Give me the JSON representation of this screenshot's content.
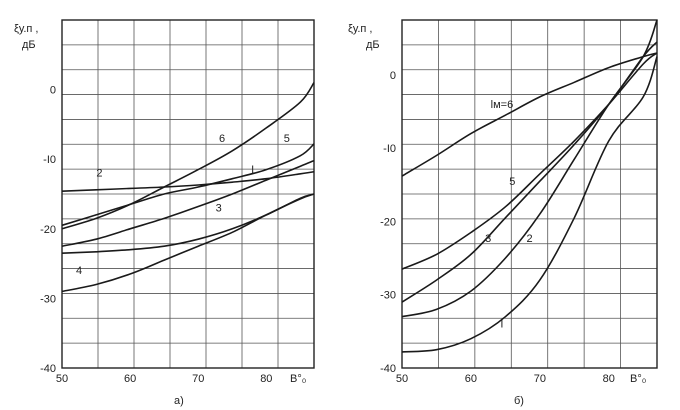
{
  "chart_data": [
    {
      "type": "line",
      "panel_label": "а)",
      "ylabel_main": "ξу.п ,",
      "ylabel_unit": "дБ",
      "xlabel": "B°₀",
      "xlim": [
        50,
        87
      ],
      "ylim": [
        -40,
        10
      ],
      "x_ticks": [
        "50",
        "60",
        "70",
        "80"
      ],
      "y_ticks": [
        "0",
        "-I0",
        "-20",
        "-30",
        "-40"
      ],
      "y_tick_values": [
        0,
        -10,
        -20,
        -30,
        -40
      ],
      "x_tick_values": [
        50,
        60,
        70,
        80
      ],
      "series": [
        {
          "name": "I",
          "x": [
            50,
            55,
            60,
            65,
            70,
            75,
            80,
            85,
            87
          ],
          "y": [
            -22.5,
            -21.5,
            -20,
            -18.5,
            -16.8,
            -15,
            -13,
            -11,
            -10.2
          ]
        },
        {
          "name": "2",
          "x": [
            50,
            55,
            60,
            65,
            70,
            75,
            80,
            85,
            87
          ],
          "y": [
            -14.6,
            -14.4,
            -14.2,
            -14,
            -13.7,
            -13.3,
            -12.8,
            -12.1,
            -11.8
          ]
        },
        {
          "name": "3",
          "x": [
            50,
            55,
            60,
            65,
            70,
            75,
            80,
            85,
            87
          ],
          "y": [
            -23.5,
            -23.3,
            -23,
            -22.5,
            -21.5,
            -20,
            -18,
            -15.6,
            -15
          ]
        },
        {
          "name": "4",
          "x": [
            50,
            55,
            60,
            65,
            70,
            75,
            80,
            85,
            87
          ],
          "y": [
            -29,
            -28,
            -26.5,
            -24.5,
            -22.5,
            -20.5,
            -18,
            -15.7,
            -15
          ]
        },
        {
          "name": "5",
          "x": [
            50,
            55,
            60,
            65,
            70,
            75,
            80,
            85,
            87
          ],
          "y": [
            -19.5,
            -18,
            -16.5,
            -15,
            -14,
            -12.8,
            -11.5,
            -9.5,
            -7.8
          ]
        },
        {
          "name": "6",
          "x": [
            50,
            55,
            60,
            65,
            70,
            75,
            80,
            85,
            87
          ],
          "y": [
            -20,
            -18.5,
            -16.5,
            -14,
            -11.5,
            -8.8,
            -5.5,
            -1.8,
            1
          ]
        }
      ],
      "curve_labels": [
        {
          "text": "I",
          "x": 78,
          "y": -12
        },
        {
          "text": "2",
          "x": 55.5,
          "y": -12.5
        },
        {
          "text": "3",
          "x": 73,
          "y": -17.5
        },
        {
          "text": "4",
          "x": 52.5,
          "y": -26.5
        },
        {
          "text": "5",
          "x": 83,
          "y": -7.5
        },
        {
          "text": "6",
          "x": 73.5,
          "y": -7.5
        }
      ]
    },
    {
      "type": "line",
      "panel_label": "б)",
      "ylabel_main": "ξу.п ,",
      "ylabel_unit": "дБ",
      "xlabel": "B°₀",
      "xlim": [
        50,
        87
      ],
      "ylim": [
        -40,
        7.5
      ],
      "x_ticks": [
        "50",
        "60",
        "70",
        "80"
      ],
      "y_ticks": [
        "0",
        "-I0",
        "-20",
        "-30",
        "-40"
      ],
      "y_tick_values": [
        0,
        -10,
        -20,
        -30,
        -40
      ],
      "x_tick_values": [
        50,
        60,
        70,
        80
      ],
      "series": [
        {
          "name": "lм=6",
          "x": [
            50,
            55,
            60,
            65,
            70,
            75,
            80,
            85,
            87
          ],
          "y": [
            -13.8,
            -11,
            -8,
            -5.5,
            -3,
            -1,
            1,
            2.5,
            3
          ]
        },
        {
          "name": "5",
          "x": [
            50,
            55,
            60,
            65,
            70,
            75,
            80,
            85,
            87
          ],
          "y": [
            -26.5,
            -24.5,
            -21.5,
            -18,
            -13.5,
            -9,
            -4,
            1.5,
            3
          ]
        },
        {
          "name": "3",
          "x": [
            50,
            55,
            60,
            65,
            70,
            75,
            80,
            85,
            87
          ],
          "y": [
            -31,
            -28,
            -24.5,
            -19.5,
            -14.5,
            -9.5,
            -4,
            2.5,
            4.5
          ]
        },
        {
          "name": "2",
          "x": [
            50,
            55,
            60,
            65,
            70,
            75,
            80,
            85,
            87
          ],
          "y": [
            -33,
            -32,
            -29.5,
            -25,
            -19,
            -11.5,
            -4,
            2.5,
            7.5
          ]
        },
        {
          "name": "I",
          "x": [
            50,
            55,
            60,
            65,
            70,
            75,
            80,
            85,
            87
          ],
          "y": [
            -37.8,
            -37.5,
            -36,
            -33,
            -28,
            -19.5,
            -9,
            -3,
            2.5
          ]
        }
      ],
      "curve_labels": [
        {
          "text": "lм=6",
          "x": 64.5,
          "y": -4.5
        },
        {
          "text": "5",
          "x": 66,
          "y": -15
        },
        {
          "text": "3",
          "x": 62.5,
          "y": -22.8
        },
        {
          "text": "2",
          "x": 68.5,
          "y": -22.8
        },
        {
          "text": "I",
          "x": 64.5,
          "y": -34.5
        }
      ]
    }
  ]
}
